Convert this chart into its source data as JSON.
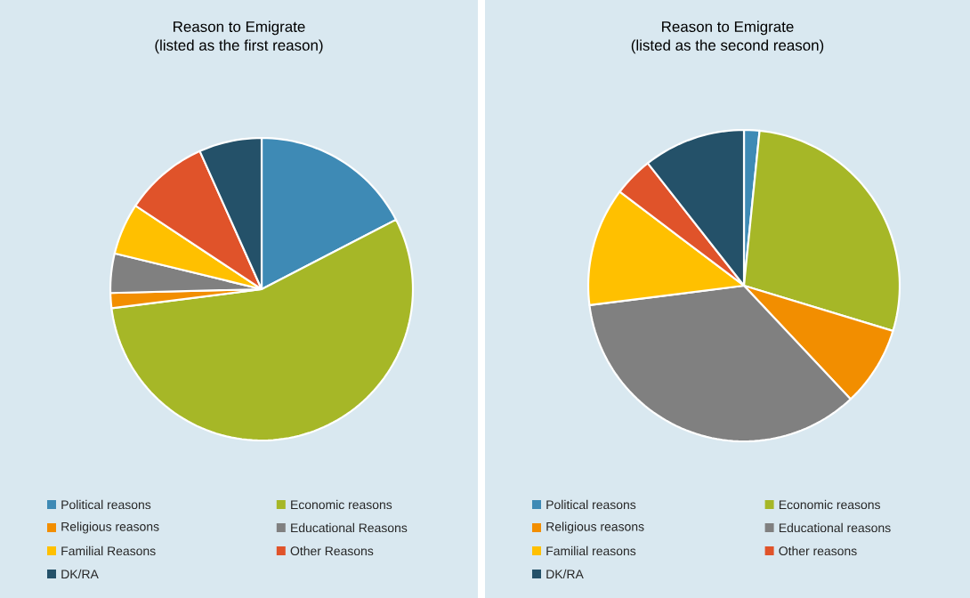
{
  "chart_data": [
    {
      "type": "pie",
      "title": "Reason to Emigrate",
      "subtitle": "(listed as the first reason)",
      "legend": "bottom",
      "categories": [
        "Political reasons",
        "Economic reasons",
        "Religious reasons",
        "Educational Reasons",
        "Familial Reasons",
        "Other Reasons",
        "DK/RA"
      ],
      "values": [
        17.4,
        55.6,
        1.6,
        4.2,
        5.5,
        9.0,
        6.7
      ],
      "colors": [
        "#3e8ab5",
        "#a6b727",
        "#f28e00",
        "#808080",
        "#ffc000",
        "#e0532a",
        "#245169"
      ]
    },
    {
      "type": "pie",
      "title": "Reason to Emigrate",
      "subtitle": "(listed as the second reason)",
      "legend": "bottom",
      "categories": [
        "Political reasons",
        "Economic reasons",
        "Religious reasons",
        "Educational reasons",
        "Familial reasons",
        "Other reasons",
        "DK/RA"
      ],
      "values": [
        1.6,
        28.1,
        8.3,
        35.0,
        12.3,
        4.1,
        10.6
      ],
      "colors": [
        "#3e8ab5",
        "#a6b727",
        "#f28e00",
        "#808080",
        "#ffc000",
        "#e0532a",
        "#245169"
      ]
    }
  ]
}
